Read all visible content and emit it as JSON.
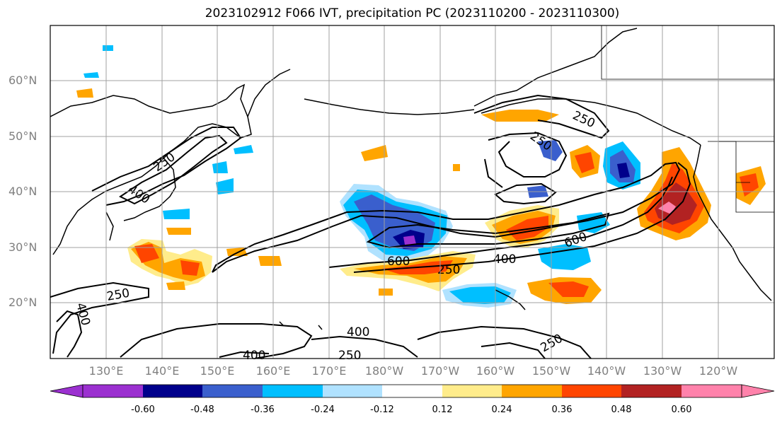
{
  "title": "2023102912 F066 IVT, precipitation PC (2023110200 - 2023110300)",
  "axes": {
    "y_ticks": [
      "60°N",
      "50°N",
      "40°N",
      "30°N",
      "20°N"
    ],
    "x_ticks": [
      "130°E",
      "140°E",
      "150°E",
      "160°E",
      "170°E",
      "180°W",
      "170°W",
      "160°W",
      "150°W",
      "140°W",
      "130°W",
      "120°W"
    ]
  },
  "colorbar": {
    "levels": [
      "-0.60",
      "-0.48",
      "-0.36",
      "-0.24",
      "-0.12",
      "0.12",
      "0.24",
      "0.36",
      "0.48",
      "0.60"
    ],
    "colors": [
      "#9b30d0",
      "#00008b",
      "#3a5fcd",
      "#00bfff",
      "#b0e2ff",
      "#ffffff",
      "#ffec8b",
      "#ffa500",
      "#ff4500",
      "#b22222",
      "#ff82ab"
    ]
  },
  "contour_labels": [
    "250",
    "400",
    "600",
    "400",
    "250",
    "600",
    "400",
    "250",
    "250",
    "250",
    "400",
    "250",
    "400",
    "250"
  ]
}
